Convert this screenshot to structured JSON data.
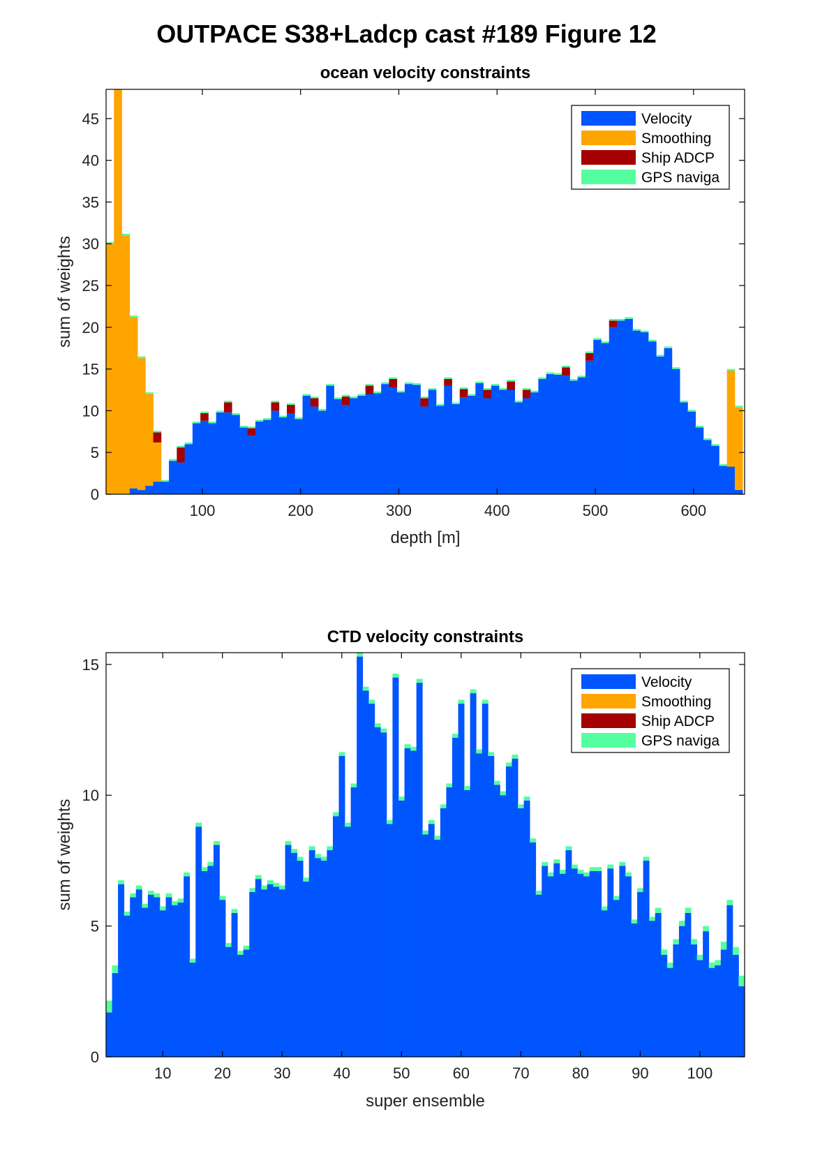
{
  "figure": {
    "title": "OUTPACE S38+Ladcp cast #189  Figure 12"
  },
  "colors": {
    "Velocity": "#0055ff",
    "Smoothing": "#ffa500",
    "Ship ADCP": "#a50000",
    "GPS naviga": "#55ff9f"
  },
  "legend": [
    "Velocity",
    "Smoothing",
    "Ship ADCP",
    "GPS naviga"
  ],
  "chart_data": [
    {
      "type": "bar",
      "stacked": true,
      "title": "ocean velocity constraints",
      "xlabel": "depth [m]",
      "ylabel": "sum of weights",
      "xlim": [
        2,
        652
      ],
      "ylim": [
        0,
        48.5
      ],
      "xticks": [
        100,
        200,
        300,
        400,
        500,
        600
      ],
      "yticks": [
        0,
        5,
        10,
        15,
        20,
        25,
        30,
        35,
        40,
        45
      ],
      "bin_width": 8,
      "grid": false,
      "legend_position": "top-right",
      "x": [
        6,
        14,
        22,
        30,
        38,
        46,
        54,
        62,
        70,
        78,
        86,
        94,
        102,
        110,
        118,
        126,
        134,
        142,
        150,
        158,
        166,
        174,
        182,
        190,
        198,
        206,
        214,
        222,
        230,
        238,
        246,
        254,
        262,
        270,
        278,
        286,
        294,
        302,
        310,
        318,
        326,
        334,
        342,
        350,
        358,
        366,
        374,
        382,
        390,
        398,
        406,
        414,
        422,
        430,
        438,
        446,
        454,
        462,
        470,
        478,
        486,
        494,
        502,
        510,
        518,
        526,
        534,
        542,
        550,
        558,
        566,
        574,
        582,
        590,
        598,
        606,
        614,
        622,
        630,
        638,
        646
      ],
      "series": [
        {
          "name": "Velocity",
          "values": [
            0,
            0,
            0,
            0.7,
            0.5,
            1.0,
            1.5,
            1.5,
            4.0,
            3.8,
            6.0,
            8.5,
            8.8,
            8.5,
            9.8,
            9.8,
            9.5,
            8.0,
            7.0,
            8.7,
            8.9,
            10.0,
            9.2,
            9.7,
            9.0,
            11.8,
            10.5,
            10.0,
            13.0,
            11.4,
            10.7,
            11.5,
            11.8,
            12.0,
            12.1,
            13.2,
            12.8,
            12.2,
            13.2,
            13.1,
            10.5,
            12.5,
            10.6,
            13.0,
            10.8,
            11.6,
            11.8,
            13.3,
            11.5,
            13.0,
            12.5,
            12.5,
            11.0,
            11.5,
            12.2,
            13.8,
            14.4,
            14.3,
            14.2,
            13.6,
            14.0,
            16.0,
            18.5,
            18.1,
            20.0,
            20.8,
            21.0,
            19.6,
            19.4,
            18.3,
            16.5,
            17.5,
            15.0,
            11.0,
            9.9,
            8.0,
            6.5,
            5.8,
            3.4,
            3.3,
            0.5
          ]
        },
        {
          "name": "Smoothing",
          "values": [
            30.0,
            48.5,
            31.0,
            20.5,
            15.8,
            11.0,
            4.7,
            0,
            0,
            0,
            0,
            0,
            0,
            0,
            0,
            0,
            0,
            0,
            0,
            0,
            0,
            0,
            0,
            0,
            0,
            0,
            0,
            0,
            0,
            0,
            0,
            0,
            0,
            0,
            0,
            0,
            0,
            0,
            0,
            0,
            0,
            0,
            0,
            0,
            0,
            0,
            0,
            0,
            0,
            0,
            0,
            0,
            0,
            0,
            0,
            0,
            0,
            0,
            0,
            0,
            0,
            0,
            0,
            0,
            0,
            0,
            0,
            0,
            0,
            0,
            0,
            0,
            0,
            0,
            0,
            0,
            0,
            0,
            0,
            11.5,
            9.9
          ]
        },
        {
          "name": "Ship ADCP",
          "values": [
            0,
            0,
            0,
            0,
            0,
            0,
            1.2,
            0,
            0,
            1.8,
            0,
            0,
            0.9,
            0,
            0,
            1.2,
            0,
            0,
            0.9,
            0,
            0,
            1.0,
            0,
            1.0,
            0,
            0,
            1.0,
            0,
            0,
            0,
            1.0,
            0,
            0,
            1.0,
            0,
            0,
            1.0,
            0,
            0,
            0,
            1.0,
            0,
            0,
            0.8,
            0,
            1.0,
            0,
            0,
            1.0,
            0,
            0,
            1.0,
            0,
            1.0,
            0,
            0,
            0,
            0,
            1.0,
            0,
            0,
            0.9,
            0,
            0,
            0.8,
            0,
            0,
            0,
            0,
            0,
            0,
            0,
            0,
            0,
            0,
            0,
            0,
            0,
            0,
            0,
            0
          ]
        },
        {
          "name": "GPS naviga",
          "values": [
            0.2,
            0.2,
            0.2,
            0.2,
            0.2,
            0.2,
            0.2,
            0.2,
            0.2,
            0.2,
            0.2,
            0.2,
            0.2,
            0.2,
            0.2,
            0.2,
            0.2,
            0.2,
            0.2,
            0.2,
            0.2,
            0.2,
            0.2,
            0.2,
            0.2,
            0.2,
            0.2,
            0.2,
            0.2,
            0.2,
            0.2,
            0.2,
            0.2,
            0.2,
            0.2,
            0.2,
            0.2,
            0.2,
            0.2,
            0.2,
            0.2,
            0.2,
            0.2,
            0.2,
            0.2,
            0.2,
            0.2,
            0.2,
            0.2,
            0.2,
            0.2,
            0.2,
            0.2,
            0.2,
            0.2,
            0.2,
            0.2,
            0.2,
            0.2,
            0.2,
            0.2,
            0.2,
            0.2,
            0.2,
            0.2,
            0.2,
            0.2,
            0.2,
            0.2,
            0.2,
            0.2,
            0.2,
            0.2,
            0.2,
            0.2,
            0.2,
            0.2,
            0.2,
            0.2,
            0.2,
            0.2
          ]
        }
      ]
    },
    {
      "type": "bar",
      "stacked": true,
      "title": "CTD velocity constraints",
      "xlabel": "super ensemble",
      "ylabel": "sum of weights",
      "xlim": [
        0.5,
        107.5
      ],
      "ylim": [
        0,
        15.45
      ],
      "xticks": [
        10,
        20,
        30,
        40,
        50,
        60,
        70,
        80,
        90,
        100
      ],
      "yticks": [
        0,
        5,
        10,
        15
      ],
      "bin_width": 1,
      "grid": false,
      "legend_position": "top-right",
      "x": [
        1,
        2,
        3,
        4,
        5,
        6,
        7,
        8,
        9,
        10,
        11,
        12,
        13,
        14,
        15,
        16,
        17,
        18,
        19,
        20,
        21,
        22,
        23,
        24,
        25,
        26,
        27,
        28,
        29,
        30,
        31,
        32,
        33,
        34,
        35,
        36,
        37,
        38,
        39,
        40,
        41,
        42,
        43,
        44,
        45,
        46,
        47,
        48,
        49,
        50,
        51,
        52,
        53,
        54,
        55,
        56,
        57,
        58,
        59,
        60,
        61,
        62,
        63,
        64,
        65,
        66,
        67,
        68,
        69,
        70,
        71,
        72,
        73,
        74,
        75,
        76,
        77,
        78,
        79,
        80,
        81,
        82,
        83,
        84,
        85,
        86,
        87,
        88,
        89,
        90,
        91,
        92,
        93,
        94,
        95,
        96,
        97,
        98,
        99,
        100,
        101,
        102,
        103,
        104,
        105,
        106,
        107
      ],
      "series": [
        {
          "name": "Velocity",
          "values": [
            1.7,
            3.2,
            6.6,
            5.4,
            6.1,
            6.4,
            5.7,
            6.2,
            6.1,
            5.6,
            6.1,
            5.8,
            5.9,
            6.9,
            3.6,
            8.8,
            7.1,
            7.3,
            8.1,
            6.0,
            4.2,
            5.5,
            3.9,
            4.1,
            6.3,
            6.8,
            6.4,
            6.6,
            6.5,
            6.4,
            8.1,
            7.8,
            7.5,
            6.7,
            7.9,
            7.6,
            7.5,
            7.9,
            9.2,
            11.5,
            8.8,
            10.3,
            15.3,
            14.0,
            13.5,
            12.6,
            12.4,
            8.9,
            14.5,
            9.8,
            11.8,
            11.7,
            14.3,
            8.5,
            8.9,
            8.3,
            9.5,
            10.3,
            12.2,
            13.5,
            10.2,
            13.9,
            11.6,
            13.5,
            11.5,
            10.4,
            10.0,
            11.1,
            11.4,
            9.5,
            9.8,
            8.2,
            6.2,
            7.3,
            6.9,
            7.4,
            7.0,
            7.9,
            7.2,
            7.0,
            6.9,
            7.1,
            7.1,
            5.6,
            7.2,
            6.0,
            7.3,
            6.9,
            5.1,
            6.3,
            7.5,
            5.2,
            5.5,
            3.9,
            3.4,
            4.3,
            5.0,
            5.5,
            4.3,
            3.7,
            4.8,
            3.4,
            3.5,
            4.1,
            5.8,
            3.9,
            2.7
          ]
        },
        {
          "name": "Smoothing",
          "values": [
            0,
            0,
            0,
            0,
            0,
            0,
            0,
            0,
            0,
            0,
            0,
            0,
            0,
            0,
            0,
            0,
            0,
            0,
            0,
            0,
            0,
            0,
            0,
            0,
            0,
            0,
            0,
            0,
            0,
            0,
            0,
            0,
            0,
            0,
            0,
            0,
            0,
            0,
            0,
            0,
            0,
            0,
            0,
            0,
            0,
            0,
            0,
            0,
            0,
            0,
            0,
            0,
            0,
            0,
            0,
            0,
            0,
            0,
            0,
            0,
            0,
            0,
            0,
            0,
            0,
            0,
            0,
            0,
            0,
            0,
            0,
            0,
            0,
            0,
            0,
            0,
            0,
            0,
            0,
            0,
            0,
            0,
            0,
            0,
            0,
            0,
            0,
            0,
            0,
            0,
            0,
            0,
            0,
            0,
            0,
            0,
            0,
            0,
            0,
            0,
            0,
            0,
            0,
            0,
            0,
            0,
            0
          ]
        },
        {
          "name": "Ship ADCP",
          "values": [
            0,
            0,
            0,
            0,
            0,
            0,
            0,
            0,
            0,
            0,
            0,
            0,
            0,
            0,
            0,
            0,
            0,
            0,
            0,
            0,
            0,
            0,
            0,
            0,
            0,
            0,
            0,
            0,
            0,
            0,
            0,
            0,
            0,
            0,
            0,
            0,
            0,
            0,
            0,
            0,
            0,
            0,
            0,
            0,
            0,
            0,
            0,
            0,
            0,
            0,
            0,
            0,
            0,
            0,
            0,
            0,
            0,
            0,
            0,
            0,
            0,
            0,
            0,
            0,
            0,
            0,
            0,
            0,
            0,
            0,
            0,
            0,
            0,
            0,
            0,
            0,
            0,
            0,
            0,
            0,
            0,
            0,
            0,
            0,
            0,
            0,
            0,
            0,
            0,
            0,
            0,
            0,
            0,
            0,
            0,
            0,
            0,
            0,
            0,
            0,
            0,
            0,
            0,
            0,
            0,
            0,
            0
          ]
        },
        {
          "name": "GPS naviga",
          "values": [
            0.45,
            0.3,
            0.15,
            0.15,
            0.15,
            0.15,
            0.15,
            0.15,
            0.15,
            0.15,
            0.15,
            0.15,
            0.15,
            0.15,
            0.15,
            0.15,
            0.15,
            0.15,
            0.15,
            0.15,
            0.15,
            0.15,
            0.15,
            0.15,
            0.15,
            0.15,
            0.15,
            0.15,
            0.15,
            0.15,
            0.15,
            0.15,
            0.15,
            0.15,
            0.15,
            0.15,
            0.15,
            0.15,
            0.15,
            0.15,
            0.15,
            0.15,
            0.15,
            0.15,
            0.15,
            0.15,
            0.15,
            0.15,
            0.15,
            0.15,
            0.15,
            0.15,
            0.15,
            0.15,
            0.15,
            0.15,
            0.15,
            0.15,
            0.15,
            0.15,
            0.15,
            0.15,
            0.15,
            0.15,
            0.15,
            0.15,
            0.15,
            0.15,
            0.15,
            0.15,
            0.15,
            0.15,
            0.15,
            0.15,
            0.15,
            0.15,
            0.15,
            0.15,
            0.15,
            0.15,
            0.15,
            0.15,
            0.15,
            0.15,
            0.15,
            0.15,
            0.15,
            0.15,
            0.15,
            0.15,
            0.15,
            0.15,
            0.2,
            0.2,
            0.2,
            0.2,
            0.2,
            0.2,
            0.2,
            0.2,
            0.2,
            0.2,
            0.2,
            0.3,
            0.2,
            0.3,
            0.4
          ]
        }
      ]
    }
  ]
}
